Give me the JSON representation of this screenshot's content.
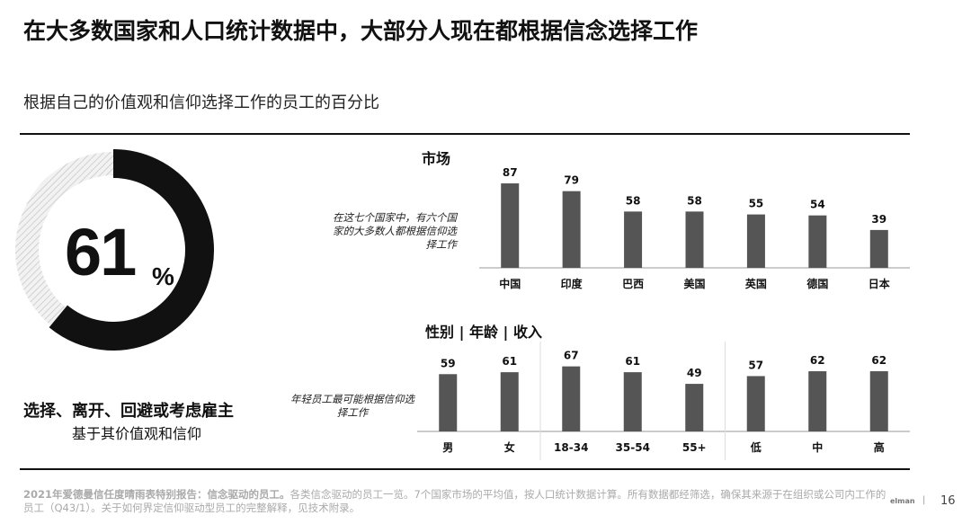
{
  "title": "在大多数国家和人口统计数据中，大部分人现在都根据信念选择工作",
  "subtitle": "根据自己的价值观和信仰选择工作的员工的百分比",
  "donut": {
    "value": 61,
    "value_label": "61",
    "pct_sign": "%",
    "caption_line1": "选择、离开、回避或考虑雇主",
    "caption_line2": "基于其价值观和信仰",
    "fill_color": "#111111",
    "remainder_style": "hatched"
  },
  "sections": {
    "market_title": "市场",
    "market_note": "在这七个国家中，有六个国家的大多数人都根据信仰选择工作",
    "demo_title": "性别 | 年龄 | 收入",
    "demo_note": "年轻员工最可能根据信仰选择工作"
  },
  "chart_data": [
    {
      "type": "bar",
      "title": "市场",
      "categories": [
        "中国",
        "印度",
        "巴西",
        "美国",
        "英国",
        "德国",
        "日本"
      ],
      "values": [
        87,
        79,
        58,
        58,
        55,
        54,
        39
      ],
      "bar_color": "#555555"
    },
    {
      "type": "bar",
      "title": "性别 | 年龄 | 收入",
      "categories": [
        "男",
        "女",
        "18-34",
        "35-54",
        "55+",
        "低",
        "中",
        "高"
      ],
      "values": [
        59,
        61,
        67,
        61,
        49,
        57,
        62,
        62
      ],
      "groups": [
        [
          0,
          1
        ],
        [
          2,
          3,
          4
        ],
        [
          5,
          6,
          7
        ]
      ],
      "bar_color": "#555555"
    }
  ],
  "footer": {
    "bold": "2021年爱德曼信任度晴雨表特别报告：信念驱动的员工。",
    "text": "各类信念驱动的员工一览。7个国家市场的平均值，按人口统计数据计算。所有数据都经筛选，确保其来源于在组织或公司内工作的员工（Q43/1）。关于如何界定信仰驱动型员工的完整解释，见技术附录。",
    "brand": "elman",
    "separator": "|",
    "page": "16"
  }
}
